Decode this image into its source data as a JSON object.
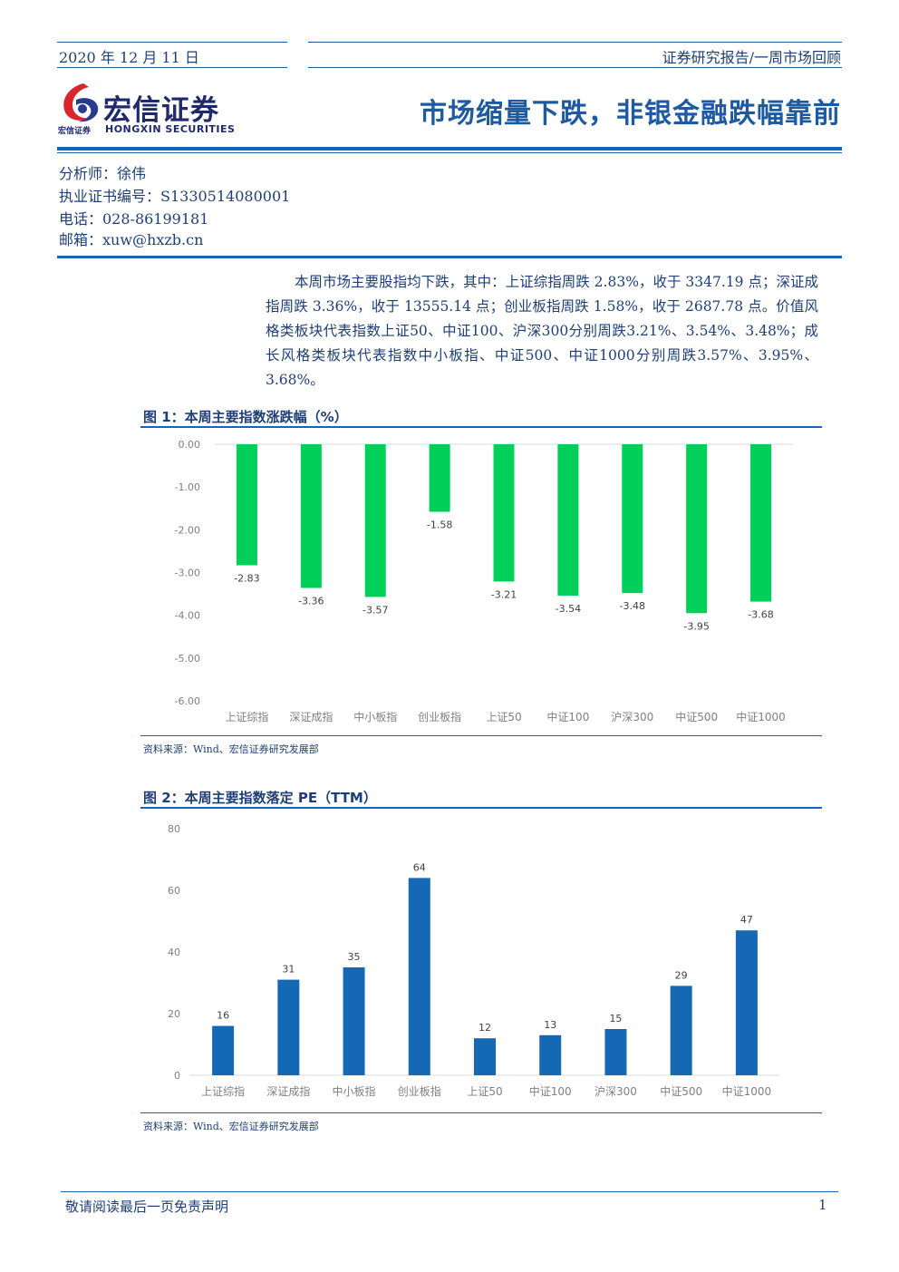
{
  "header": {
    "date": "2020 年 12 月 11 日",
    "report_type": "证券研究报告/一周市场回顾",
    "title": "市场缩量下跌，非银金融跌幅靠前"
  },
  "logo": {
    "name_cn": "宏信证券",
    "name_cn_small": "宏信证券",
    "name_en": "HONGXIN SECURITIES"
  },
  "analyst": {
    "name": "分析师：徐伟",
    "cert": "执业证书编号：S1330514080001",
    "phone": "电话：028-86199181",
    "email": "邮箱：xuw@hxzb.cn"
  },
  "body": {
    "paragraph": "本周市场主要股指均下跌，其中：上证综指周跌 2.83%，收于 3347.19 点；深证成指周跌 3.36%，收于 13555.14 点；创业板指周跌 1.58%，收于 2687.78 点。价值风格类板块代表指数上证50、中证100、沪深300分别周跌3.21%、3.54%、3.48%；成长风格类板块代表指数中小板指、中证500、中证1000分别周跌3.57%、3.95%、3.68%。"
  },
  "figure1": {
    "title": "图 1：本周主要指数涨跌幅（%）",
    "source": "资料来源：Wind、宏信证券研究发展部"
  },
  "figure2": {
    "title": "图 2：本周主要指数落定 PE（TTM）",
    "source": "资料来源：Wind、宏信证券研究发展部"
  },
  "chart_data": [
    {
      "type": "bar",
      "categories": [
        "上证综指",
        "深证成指",
        "中小板指",
        "创业板指",
        "上证50",
        "中证100",
        "沪深300",
        "中证500",
        "中证1000"
      ],
      "values": [
        -2.83,
        -3.36,
        -3.57,
        -1.58,
        -3.21,
        -3.54,
        -3.48,
        -3.95,
        -3.68
      ],
      "value_labels": [
        "-2.83",
        "-3.36",
        "-3.57",
        "-1.58",
        "-3.21",
        "-3.54",
        "-3.48",
        "-3.95",
        "-3.68"
      ],
      "ylim": [
        -6,
        0
      ],
      "yticks": [
        "0.00",
        "-1.00",
        "-2.00",
        "-3.00",
        "-4.00",
        "-5.00",
        "-6.00"
      ],
      "color": "#00d05a",
      "grid": false
    },
    {
      "type": "bar",
      "categories": [
        "上证综指",
        "深证成指",
        "中小板指",
        "创业板指",
        "上证50",
        "中证100",
        "沪深300",
        "中证500",
        "中证1000"
      ],
      "values": [
        16,
        31,
        35,
        64,
        12,
        13,
        15,
        29,
        47
      ],
      "value_labels": [
        "16",
        "31",
        "35",
        "64",
        "12",
        "13",
        "15",
        "29",
        "47"
      ],
      "ylim": [
        0,
        80
      ],
      "yticks": [
        "80",
        "60",
        "40",
        "20",
        "0"
      ],
      "color": "#1468b4",
      "grid": false
    }
  ],
  "footer": {
    "disclaimer": "敬请阅读最后一页免责声明",
    "page": "1"
  }
}
